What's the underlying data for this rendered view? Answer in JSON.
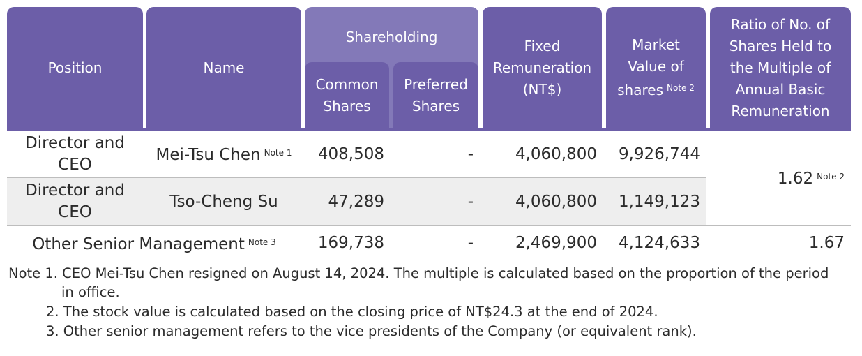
{
  "headers": {
    "position": "Position",
    "name": "Name",
    "shareholding": "Shareholding",
    "common_l1": "Common",
    "common_l2": "Shares",
    "preferred_l1": "Preferred",
    "preferred_l2": "Shares",
    "fixed_l1": "Fixed",
    "fixed_l2": "Remuneration",
    "fixed_l3": "(NT$)",
    "market_l1": "Market",
    "market_l2": "Value of",
    "market_l3": "shares",
    "market_note": "Note 2",
    "ratio_l1": "Ratio of No. of",
    "ratio_l2": "Shares Held to",
    "ratio_l3": "the Multiple of",
    "ratio_l4": "Annual Basic",
    "ratio_l5": "Remuneration"
  },
  "rows": [
    {
      "position_l1": "Director and",
      "position_l2": "CEO",
      "name": "Mei-Tsu Chen",
      "name_note": "Note 1",
      "common": "408,508",
      "preferred": "-",
      "fixed": "4,060,800",
      "market": "9,926,744"
    },
    {
      "position_l1": "Director and",
      "position_l2": "CEO",
      "name": "Tso-Cheng Su",
      "common": "47,289",
      "preferred": "-",
      "fixed": "4,060,800",
      "market": "1,149,123"
    }
  ],
  "merged_ratio": {
    "value": "1.62",
    "note": "Note 2"
  },
  "other_row": {
    "position": "Other Senior Management",
    "position_note": "Note 3",
    "common": "169,738",
    "preferred": "-",
    "fixed": "2,469,900",
    "market": "4,124,633",
    "ratio": "1.67"
  },
  "notes": {
    "n1_a": "Note 1. CEO Mei-Tsu Chen resigned on August 14, 2024. The multiple is calculated based on the proportion of the period",
    "n1_b": "in office.",
    "n2": "2. The stock value is calculated based on the closing price of NT$24.3 at the end of 2024.",
    "n3": "3. Other senior management refers to the vice presidents of the Company (or equivalent rank)."
  },
  "colors": {
    "header": "#6c5ea8",
    "header_light": "#8379b8",
    "row_alt": "#eeeeee"
  }
}
